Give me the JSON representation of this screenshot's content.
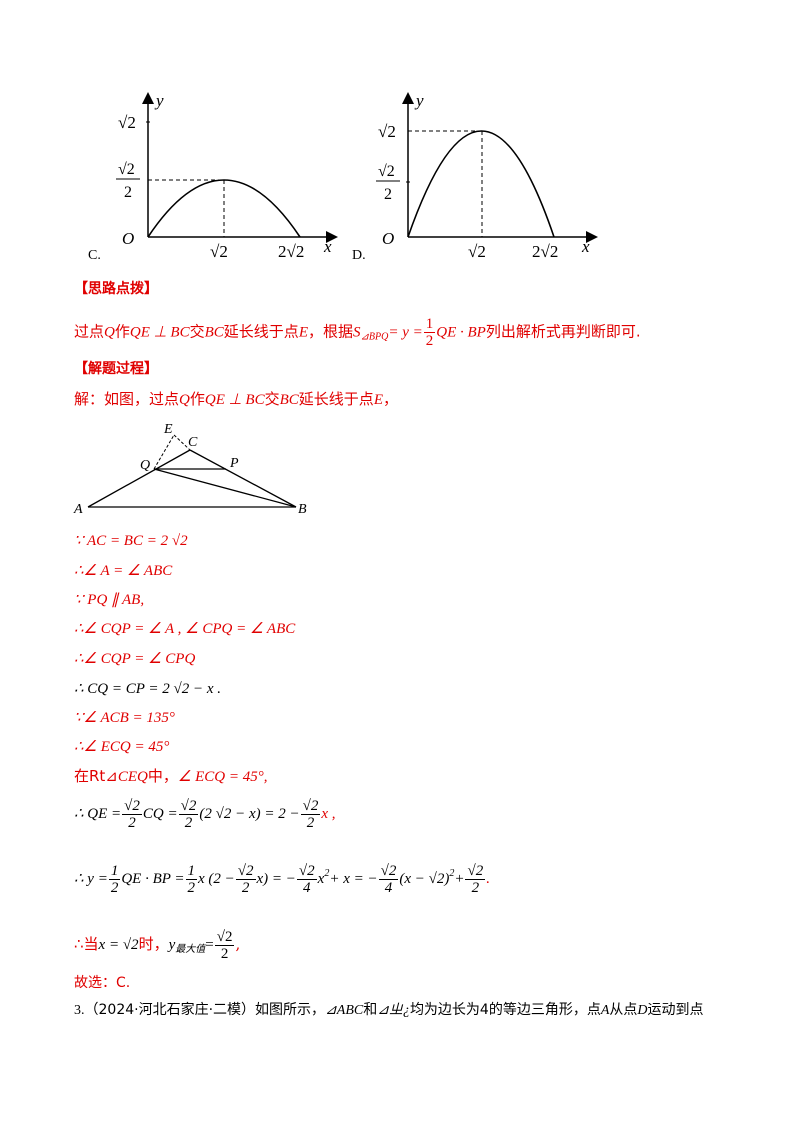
{
  "graph_c": {
    "option_label": "C.",
    "y_axis": "y",
    "x_axis": "x",
    "origin": "O",
    "y_tick_top": "√2",
    "y_tick_mid_num": "√2",
    "y_tick_mid_den": "2",
    "x_tick_1": "√2",
    "x_tick_2": "2√2"
  },
  "graph_d": {
    "option_label": "D.",
    "y_axis": "y",
    "x_axis": "x",
    "origin": "O",
    "y_tick_top": "√2",
    "y_tick_mid_num": "√2",
    "y_tick_mid_den": "2",
    "x_tick_1": "√2",
    "x_tick_2": "2√2"
  },
  "hint": {
    "title": "【思路点拨】",
    "text_a": "过点",
    "Q": "Q",
    "text_b": "作",
    "rel": "QE ⊥ BC",
    "text_c": "交",
    "BC": "BC",
    "text_d": "延长线于点",
    "E": "E",
    "text_e": "，根据",
    "S": "S",
    "S_sub": "⊿BPQ",
    "eq": "= y =",
    "half_num": "1",
    "half_den": "2",
    "expr": "QE · BP",
    "text_f": "列出解析式再判断即可."
  },
  "solution": {
    "title": "【解题过程】",
    "intro_a": "解：如图，过点",
    "intro_Q": "Q",
    "intro_b": "作",
    "intro_rel": "QE ⊥ BC",
    "intro_c": "交",
    "intro_BC": "BC",
    "intro_d": "延长线于点",
    "intro_E": "E",
    "intro_e": "，",
    "triangle_labels": {
      "E": "E",
      "C": "C",
      "Q": "Q",
      "P": "P",
      "A": "A",
      "B": "B"
    },
    "l1": "∵ AC = BC = 2 √2",
    "l2": "∴∠ A = ∠ ABC",
    "l3": "∵ PQ ∥ AB,",
    "l4": "∴∠ CQP = ∠ A , ∠ CPQ = ∠ ABC",
    "l5": "∴∠ CQP = ∠ CPQ",
    "l6": "∴ CQ = CP = 2 √2 − x .",
    "l7": "∵∠ ACB = 135°",
    "l8": "∴∠ ECQ = 45°",
    "l9_a": "在Rt⊿",
    "l9_b": "CEQ",
    "l9_c": "中，",
    "l9_d": "∠ ECQ = 45°,",
    "l10_a": "∴ QE =",
    "l10_b": "CQ =",
    "l10_c": "(2 √2 − x) = 2 −",
    "l10_d": "x ,",
    "l11_a": "∴ y =",
    "l11_b": "QE · BP =",
    "l11_c": "x (2 −",
    "l11_d": "x) = −",
    "l11_e": "x",
    "l11_sup": "2",
    "l11_f": "+ x = −",
    "l11_g": "(x − √2)",
    "l11_sup2": "2",
    "l11_h": "+",
    "l11_i": ".",
    "frac_r2_num": "√2",
    "frac_2": "2",
    "frac_4": "4",
    "frac_1": "1",
    "l12_a": "∴当",
    "l12_b": "x = √2",
    "l12_c": "时，",
    "l12_d": "y",
    "l12_sub": "最大值",
    "l12_e": "=",
    "l12_f": ",",
    "answer": "故选：C."
  },
  "next_problem": {
    "num": "3.",
    "source": "（2024·河北石家庄·二模）如图所示，",
    "tri1": "⊿ABC",
    "and": "和",
    "tri2": "⊿ㄓ¿",
    "text": "均为边长为4的等边三角形，点",
    "A": "A",
    "from": "从点",
    "D": "D",
    "end": "运动到点"
  }
}
